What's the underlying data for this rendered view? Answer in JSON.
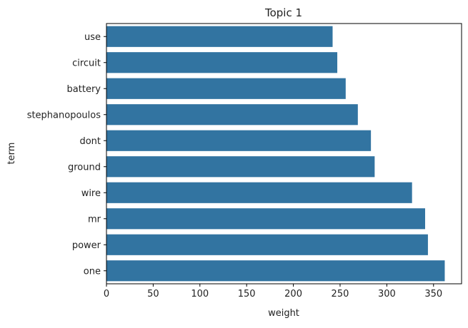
{
  "chart_data": {
    "type": "bar",
    "orientation": "horizontal",
    "title": "Topic 1",
    "xlabel": "weight",
    "ylabel": "term",
    "categories": [
      "use",
      "circuit",
      "battery",
      "stephanopoulos",
      "dont",
      "ground",
      "wire",
      "mr",
      "power",
      "one"
    ],
    "values": [
      242,
      247,
      256,
      269,
      283,
      287,
      327,
      341,
      344,
      362
    ],
    "xlim": [
      0,
      380
    ],
    "xticks": [
      0,
      50,
      100,
      150,
      200,
      250,
      300,
      350
    ],
    "grid": false,
    "bar_color": "#3274a1"
  }
}
